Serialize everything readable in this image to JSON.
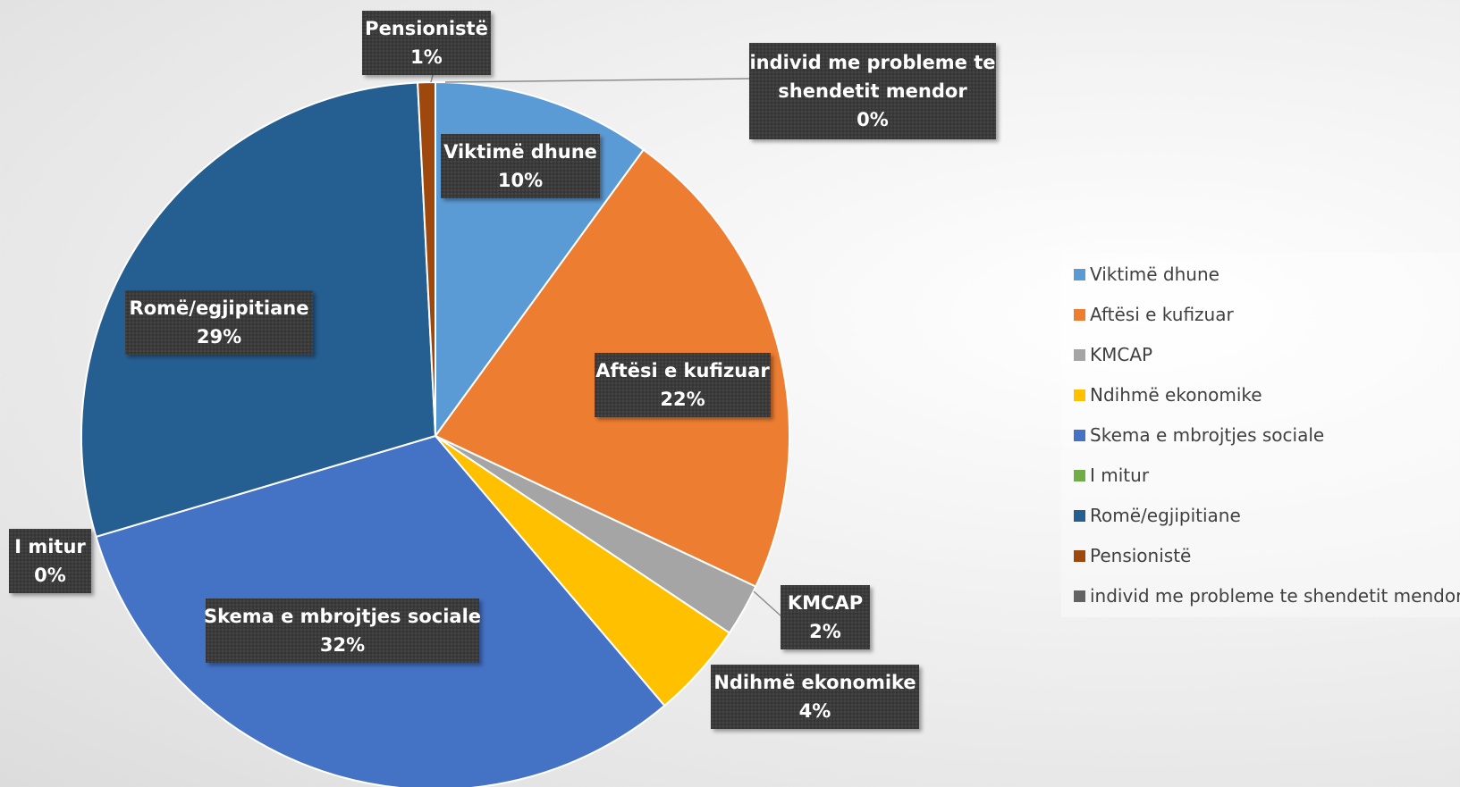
{
  "chart_data": {
    "type": "pie",
    "title": "",
    "slices": [
      {
        "label": "Viktimë dhune",
        "value": 10,
        "value_label": "10%",
        "color": "#5b9bd5"
      },
      {
        "label": "Aftësi e kufizuar",
        "value": 22,
        "value_label": "22%",
        "color": "#ed7d31"
      },
      {
        "label": "KMCAP",
        "value": 2.4,
        "value_label": "2%",
        "color": "#a5a5a5"
      },
      {
        "label": "Ndihmë ekonomike",
        "value": 4.4,
        "value_label": "4%",
        "color": "#ffc000"
      },
      {
        "label": "Skema e mbrojtjes sociale",
        "value": 31.6,
        "value_label": "32%",
        "color": "#4472c4"
      },
      {
        "label": "I mitur",
        "value": 0,
        "value_label": "0%",
        "color": "#70ad47"
      },
      {
        "label": "Romë/egjipitiane",
        "value": 28.8,
        "value_label": "29%",
        "color": "#255e91"
      },
      {
        "label": "Pensionistë",
        "value": 0.8,
        "value_label": "1%",
        "color": "#9e480e"
      },
      {
        "label": "individ me probleme te shendetit mendor",
        "value": 0,
        "value_label": "0%",
        "color": "#636363"
      }
    ],
    "legend": {
      "placement": "right"
    }
  }
}
